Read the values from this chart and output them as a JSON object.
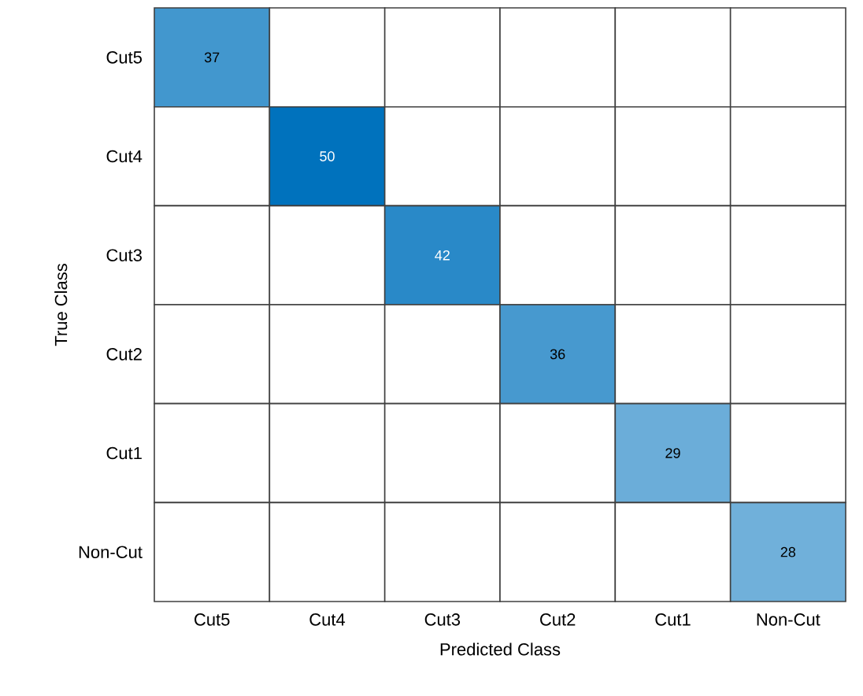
{
  "chart_data": {
    "type": "heatmap",
    "xlabel": "Predicted Class",
    "ylabel": "True Class",
    "color": "#0072bd",
    "data_labels": true,
    "categories": [
      "Cut5",
      "Cut4",
      "Cut3",
      "Cut2",
      "Cut1",
      "Non-Cut"
    ],
    "y_categories": [
      "Cut5",
      "Cut4",
      "Cut3",
      "Cut2",
      "Cut1",
      "Non-Cut"
    ],
    "cells": [
      [
        37,
        null,
        null,
        null,
        null,
        null
      ],
      [
        null,
        50,
        null,
        null,
        null,
        null
      ],
      [
        null,
        null,
        42,
        null,
        null,
        null
      ],
      [
        null,
        null,
        null,
        36,
        null,
        null
      ],
      [
        null,
        null,
        null,
        null,
        29,
        null
      ],
      [
        null,
        null,
        null,
        null,
        null,
        28
      ]
    ]
  }
}
